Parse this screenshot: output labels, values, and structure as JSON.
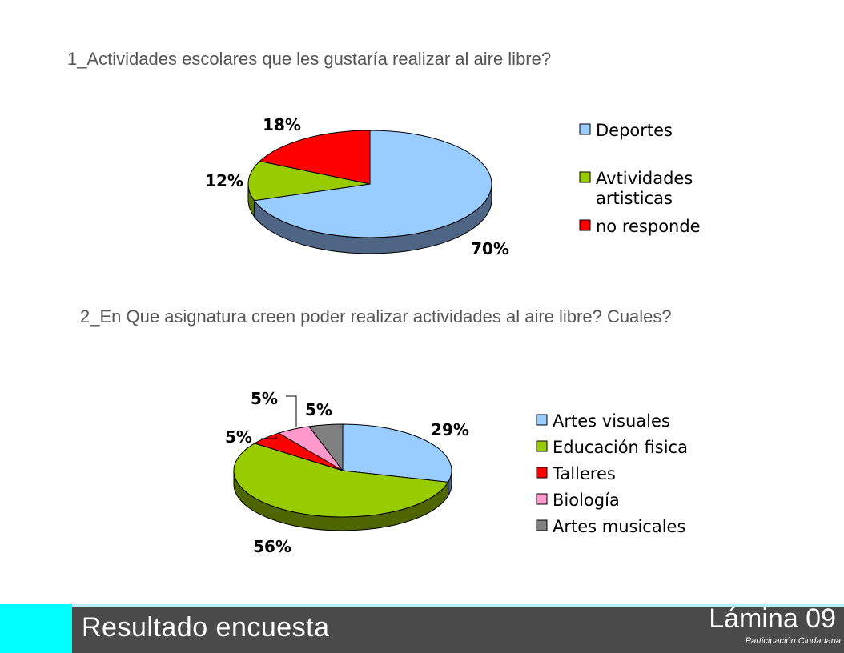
{
  "questions": {
    "q1": "1_Actividades escolares que les gustaría realizar al aire libre?",
    "q2": "2_En Que asignatura creen poder realizar actividades al aire libre? Cuales?"
  },
  "footer": {
    "title": "Resultado  encuesta",
    "page": "Lámina 09",
    "subtitle": "Participación Ciudadana",
    "accent_color": "#00ffff"
  },
  "chart_data": [
    {
      "type": "pie",
      "title": "",
      "labels": [
        "Deportes",
        "Avtividades artisticas",
        "no responde"
      ],
      "values": [
        70,
        12,
        18
      ],
      "data_labels": [
        "70%",
        "12%",
        "18%"
      ],
      "colors": [
        "#99ccff",
        "#99cc00",
        "#ff0000"
      ],
      "side_colors": [
        "#4f6584",
        "#5c7a00",
        "#990000"
      ],
      "legend_placement": "right",
      "three_d": true
    },
    {
      "type": "pie",
      "title": "",
      "labels": [
        "Artes visuales",
        "Educación fisica",
        "Talleres",
        "Biología",
        "Artes musicales"
      ],
      "values": [
        29,
        56,
        5,
        5,
        5
      ],
      "data_labels": [
        "29%",
        "56%",
        "5%",
        "5%",
        "5%"
      ],
      "colors": [
        "#99ccff",
        "#99cc00",
        "#ff0000",
        "#ff99cc",
        "#808080"
      ],
      "side_colors": [
        "#4f6584",
        "#4f6600",
        "#990000",
        "#99607a",
        "#505050"
      ],
      "legend_placement": "right",
      "three_d": true
    }
  ]
}
